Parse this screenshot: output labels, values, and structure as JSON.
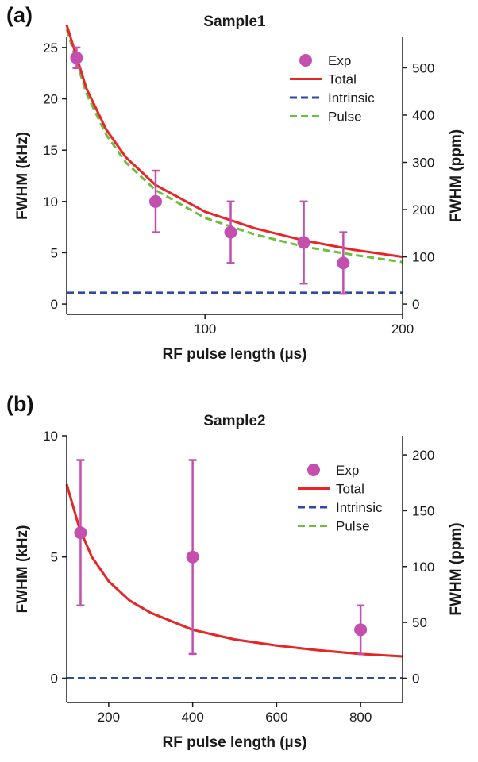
{
  "chart_data": [
    {
      "panel_label": "(a)",
      "type": "scatter",
      "title": "Sample1",
      "xlabel": "RF pulse length (µs)",
      "ylabel": "FWHM (kHz)",
      "y2label": "FWHM (ppm)",
      "xlim": [
        30,
        200
      ],
      "ylim": [
        -1,
        26
      ],
      "y2lim": [
        -21.7,
        564.6
      ],
      "xticks": [
        100,
        200
      ],
      "yticks": [
        0,
        5,
        10,
        15,
        20,
        25
      ],
      "y2ticks": [
        0,
        100,
        200,
        300,
        400,
        500
      ],
      "grid": false,
      "legend_position": "top-right",
      "colors": {
        "exp": "#c44faf",
        "total": "#e8262a",
        "intrinsic": "#2f4aa0",
        "pulse": "#6bbf3c"
      },
      "series": [
        {
          "name": "Exp",
          "style": "points",
          "x": [
            35,
            75,
            113,
            150,
            170
          ],
          "y": [
            24,
            10,
            7,
            6,
            4
          ],
          "err_low": [
            23,
            7,
            4,
            2,
            1
          ],
          "err_high": [
            25,
            13,
            10,
            10,
            7
          ]
        },
        {
          "name": "Total",
          "style": "solid-line",
          "x": [
            30,
            40,
            50,
            60,
            75,
            100,
            125,
            150,
            175,
            200
          ],
          "y": [
            27.2,
            21.0,
            17.0,
            14.3,
            11.6,
            9.0,
            7.4,
            6.2,
            5.3,
            4.6
          ]
        },
        {
          "name": "Intrinsic",
          "style": "dashed-line",
          "x": [
            30,
            200
          ],
          "y": [
            1.1,
            1.1
          ]
        },
        {
          "name": "Pulse",
          "style": "dashed-line",
          "x": [
            30,
            40,
            50,
            60,
            75,
            100,
            125,
            150,
            175,
            200
          ],
          "y": [
            26.8,
            20.5,
            16.5,
            13.8,
            11.1,
            8.4,
            6.8,
            5.6,
            4.8,
            4.1
          ]
        }
      ]
    },
    {
      "panel_label": "(b)",
      "type": "scatter",
      "title": "Sample2",
      "xlabel": "RF pulse length (µs)",
      "ylabel": "FWHM (kHz)",
      "y2label": "FWHM (ppm)",
      "xlim": [
        100,
        900
      ],
      "ylim": [
        -1,
        10
      ],
      "y2lim": [
        -21.7,
        217.1
      ],
      "xticks": [
        200,
        400,
        600,
        800
      ],
      "yticks": [
        0,
        5,
        10
      ],
      "y2ticks": [
        0,
        50,
        100,
        150,
        200
      ],
      "grid": false,
      "legend_position": "top-right",
      "colors": {
        "exp": "#c44faf",
        "total": "#e8262a",
        "intrinsic": "#2f4aa0",
        "pulse": "#6bbf3c"
      },
      "series": [
        {
          "name": "Exp",
          "style": "points",
          "x": [
            133,
            400,
            800
          ],
          "y": [
            6,
            5,
            2
          ],
          "err_low": [
            3,
            1,
            1
          ],
          "err_high": [
            9,
            9,
            3
          ]
        },
        {
          "name": "Total",
          "style": "solid-line",
          "x": [
            100,
            130,
            160,
            200,
            250,
            300,
            400,
            500,
            600,
            700,
            800,
            900
          ],
          "y": [
            8.0,
            6.2,
            5.0,
            4.0,
            3.2,
            2.7,
            2.0,
            1.6,
            1.35,
            1.15,
            1.0,
            0.9
          ]
        },
        {
          "name": "Intrinsic",
          "style": "dashed-line",
          "x": [
            100,
            900
          ],
          "y": [
            0,
            0
          ]
        },
        {
          "name": "Pulse",
          "style": "dashed-line",
          "x": [
            100,
            130,
            160,
            200,
            250,
            300,
            400,
            500,
            600,
            700,
            800,
            900
          ],
          "y": [
            8.0,
            6.2,
            5.0,
            4.0,
            3.2,
            2.7,
            2.0,
            1.6,
            1.35,
            1.15,
            1.0,
            0.9
          ]
        }
      ]
    }
  ]
}
